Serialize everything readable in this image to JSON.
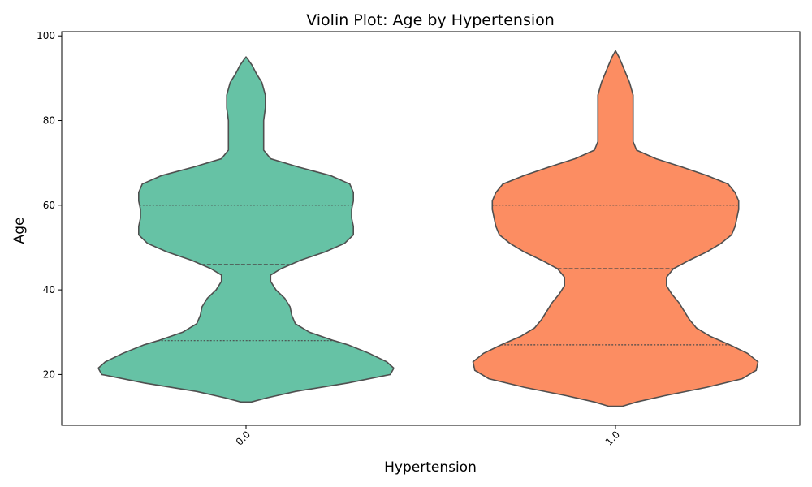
{
  "chart_data": {
    "type": "violin",
    "title": "Violin Plot: Age by Hypertension",
    "xlabel": "Hypertension",
    "ylabel": "Age",
    "categories": [
      "0.0",
      "1.0"
    ],
    "ylim": [
      8,
      101
    ],
    "yticks": [
      20,
      40,
      60,
      80,
      100
    ],
    "grid": false,
    "series": [
      {
        "category": "0.0",
        "color": "#66c2a5",
        "min": 13.5,
        "max": 95,
        "quartiles": {
          "q1": 28,
          "median": 46,
          "q3": 60
        },
        "density": [
          [
            13.5,
            0.03
          ],
          [
            14.5,
            0.12
          ],
          [
            16,
            0.28
          ],
          [
            18,
            0.58
          ],
          [
            20,
            0.82
          ],
          [
            21.5,
            0.84
          ],
          [
            23,
            0.8
          ],
          [
            25,
            0.7
          ],
          [
            27,
            0.58
          ],
          [
            28,
            0.5
          ],
          [
            30,
            0.36
          ],
          [
            32,
            0.28
          ],
          [
            34,
            0.26
          ],
          [
            36,
            0.25
          ],
          [
            38,
            0.22
          ],
          [
            40,
            0.17
          ],
          [
            42,
            0.14
          ],
          [
            43.5,
            0.14
          ],
          [
            45,
            0.2
          ],
          [
            47,
            0.31
          ],
          [
            49,
            0.45
          ],
          [
            51,
            0.56
          ],
          [
            53,
            0.61
          ],
          [
            55,
            0.61
          ],
          [
            57,
            0.6
          ],
          [
            59,
            0.6
          ],
          [
            61,
            0.61
          ],
          [
            63,
            0.61
          ],
          [
            65,
            0.59
          ],
          [
            67,
            0.48
          ],
          [
            69,
            0.3
          ],
          [
            71,
            0.14
          ],
          [
            73,
            0.1
          ],
          [
            75,
            0.1
          ],
          [
            77,
            0.1
          ],
          [
            80,
            0.1
          ],
          [
            83,
            0.11
          ],
          [
            86,
            0.11
          ],
          [
            89,
            0.09
          ],
          [
            91,
            0.06
          ],
          [
            93,
            0.035
          ],
          [
            94.5,
            0.01
          ],
          [
            95,
            0.0
          ]
        ]
      },
      {
        "category": "1.0",
        "color": "#fc8d62",
        "min": 12.5,
        "max": 96.5,
        "quartiles": {
          "q1": 27,
          "median": 45,
          "q3": 60
        },
        "density": [
          [
            12.5,
            0.04
          ],
          [
            13.5,
            0.12
          ],
          [
            15,
            0.28
          ],
          [
            17,
            0.52
          ],
          [
            19,
            0.72
          ],
          [
            21,
            0.8
          ],
          [
            23,
            0.81
          ],
          [
            25,
            0.75
          ],
          [
            27,
            0.65
          ],
          [
            29,
            0.54
          ],
          [
            31,
            0.46
          ],
          [
            33,
            0.42
          ],
          [
            35,
            0.39
          ],
          [
            37,
            0.36
          ],
          [
            39,
            0.32
          ],
          [
            41,
            0.29
          ],
          [
            43,
            0.29
          ],
          [
            45,
            0.33
          ],
          [
            47,
            0.42
          ],
          [
            49,
            0.52
          ],
          [
            51,
            0.6
          ],
          [
            53,
            0.66
          ],
          [
            55,
            0.68
          ],
          [
            57,
            0.69
          ],
          [
            59,
            0.7
          ],
          [
            61,
            0.7
          ],
          [
            63,
            0.68
          ],
          [
            65,
            0.64
          ],
          [
            67,
            0.52
          ],
          [
            69,
            0.38
          ],
          [
            71,
            0.23
          ],
          [
            73,
            0.12
          ],
          [
            75,
            0.1
          ],
          [
            77,
            0.1
          ],
          [
            80,
            0.1
          ],
          [
            83,
            0.1
          ],
          [
            86,
            0.1
          ],
          [
            89,
            0.08
          ],
          [
            91,
            0.06
          ],
          [
            93,
            0.04
          ],
          [
            95,
            0.02
          ],
          [
            96.5,
            0.0
          ]
        ]
      }
    ]
  }
}
